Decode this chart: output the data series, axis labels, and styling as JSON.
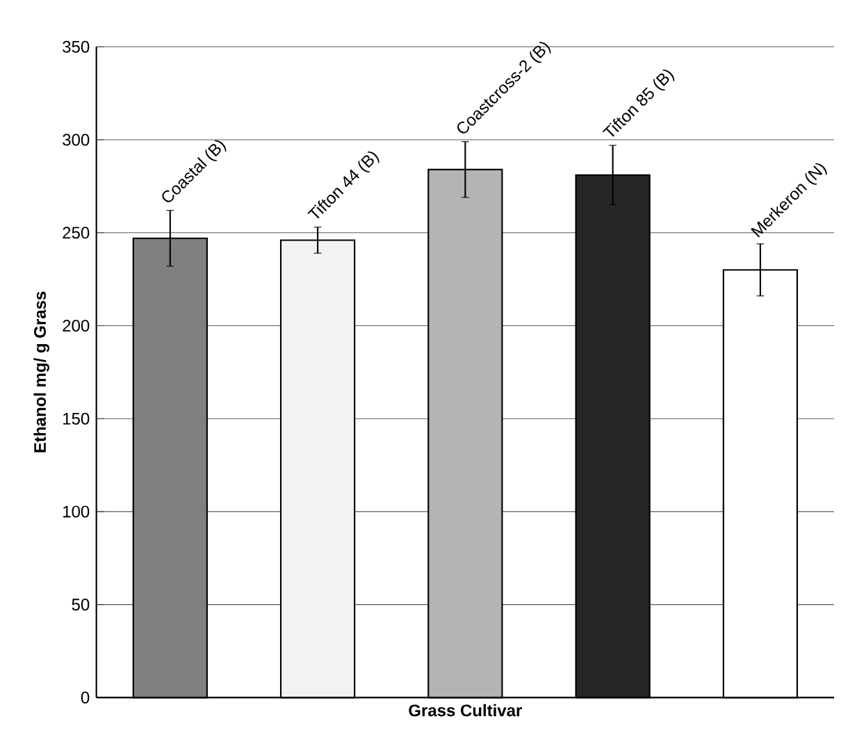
{
  "chart_data": {
    "type": "bar",
    "xlabel": "Grass Cultivar",
    "ylabel": "Ethanol mg/ g Grass",
    "categories": [
      "Coastal (B)",
      "Tifton 44 (B)",
      "Coastcross-2 (B)",
      "Tifton 85 (B)",
      "Merkeron (N)"
    ],
    "values": [
      247,
      246,
      284,
      281,
      230
    ],
    "errors": [
      15,
      7,
      15,
      16,
      14
    ],
    "colors": [
      "#808080",
      "#f2f2f2",
      "#b4b4b4",
      "#262626",
      "#ffffff"
    ],
    "ylim": [
      0,
      350
    ],
    "yticks": [
      0,
      50,
      100,
      150,
      200,
      250,
      300,
      350
    ],
    "grid": "y"
  }
}
